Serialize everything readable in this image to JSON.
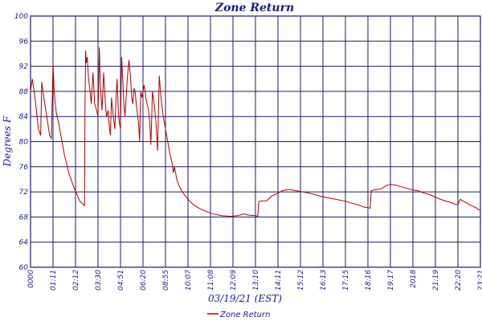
{
  "chart_data": {
    "type": "line",
    "title": "Zone Return",
    "xlabel": "03/19/21 (EST)",
    "ylabel": "Degrees F",
    "ylim": [
      60,
      100
    ],
    "yticks": [
      "60",
      "64",
      "68",
      "72",
      "76",
      "80",
      "84",
      "88",
      "92",
      "96",
      "100"
    ],
    "xticks": [
      "0000",
      "01:11",
      "02:12",
      "03:30",
      "04:51",
      "06:20",
      "08:55",
      "10:07",
      "11:08",
      "12:09",
      "13:10",
      "14:11",
      "15:12",
      "16:13",
      "17:15",
      "18:16",
      "19:17",
      "2018",
      "21:19",
      "22:20",
      "23:21"
    ],
    "grid": true,
    "legend_position": "bottom-center",
    "colors": {
      "series": "#b00000",
      "grid": "#1a1a6e",
      "text": "#1a1a8c"
    },
    "series": [
      {
        "name": "Zone Return",
        "points": [
          [
            0.0,
            88.0
          ],
          [
            0.08,
            90.0
          ],
          [
            0.2,
            87.0
          ],
          [
            0.35,
            82.0
          ],
          [
            0.45,
            81.0
          ],
          [
            0.5,
            89.5
          ],
          [
            0.55,
            88.0
          ],
          [
            0.7,
            84.5
          ],
          [
            0.85,
            81.0
          ],
          [
            0.93,
            80.5
          ],
          [
            1.0,
            92.5
          ],
          [
            1.05,
            88.0
          ],
          [
            1.1,
            86.0
          ],
          [
            1.15,
            84.5
          ],
          [
            1.25,
            83.0
          ],
          [
            1.35,
            81.0
          ],
          [
            1.5,
            78.0
          ],
          [
            1.7,
            75.0
          ],
          [
            1.95,
            72.5
          ],
          [
            2.2,
            70.5
          ],
          [
            2.4,
            69.8
          ],
          [
            2.42,
            86.0
          ],
          [
            2.45,
            94.5
          ],
          [
            2.48,
            92.5
          ],
          [
            2.52,
            93.5
          ],
          [
            2.58,
            90.0
          ],
          [
            2.65,
            88.0
          ],
          [
            2.7,
            86.0
          ],
          [
            2.78,
            91.0
          ],
          [
            2.85,
            86.0
          ],
          [
            2.9,
            85.5
          ],
          [
            3.0,
            84.0
          ],
          [
            3.06,
            95.0
          ],
          [
            3.1,
            89.0
          ],
          [
            3.18,
            85.0
          ],
          [
            3.25,
            91.0
          ],
          [
            3.33,
            86.0
          ],
          [
            3.38,
            84.0
          ],
          [
            3.45,
            85.0
          ],
          [
            3.5,
            82.5
          ],
          [
            3.55,
            81.0
          ],
          [
            3.6,
            87.0
          ],
          [
            3.68,
            84.0
          ],
          [
            3.75,
            82.0
          ],
          [
            3.8,
            87.0
          ],
          [
            3.85,
            90.0
          ],
          [
            3.9,
            85.0
          ],
          [
            3.95,
            83.0
          ],
          [
            4.0,
            82.0
          ],
          [
            4.05,
            93.5
          ],
          [
            4.1,
            90.0
          ],
          [
            4.15,
            86.0
          ],
          [
            4.2,
            84.0
          ],
          [
            4.3,
            90.0
          ],
          [
            4.38,
            93.0
          ],
          [
            4.45,
            90.0
          ],
          [
            4.5,
            87.0
          ],
          [
            4.55,
            86.0
          ],
          [
            4.6,
            88.5
          ],
          [
            4.65,
            88.0
          ],
          [
            4.7,
            86.0
          ],
          [
            4.75,
            84.5
          ],
          [
            4.8,
            83.0
          ],
          [
            4.85,
            80.0
          ],
          [
            4.9,
            88.0
          ],
          [
            4.95,
            87.0
          ],
          [
            5.05,
            89.0
          ],
          [
            5.15,
            86.5
          ],
          [
            5.25,
            85.0
          ],
          [
            5.3,
            83.0
          ],
          [
            5.35,
            79.5
          ],
          [
            5.42,
            88.0
          ],
          [
            5.5,
            86.0
          ],
          [
            5.58,
            83.0
          ],
          [
            5.65,
            78.5
          ],
          [
            5.72,
            90.5
          ],
          [
            5.8,
            87.0
          ],
          [
            5.9,
            84.0
          ],
          [
            6.0,
            82.0
          ],
          [
            6.1,
            80.0
          ],
          [
            6.2,
            78.0
          ],
          [
            6.3,
            76.5
          ],
          [
            6.35,
            75.0
          ],
          [
            6.4,
            76.0
          ],
          [
            6.5,
            74.0
          ],
          [
            6.6,
            73.0
          ],
          [
            6.75,
            72.0
          ],
          [
            7.0,
            70.8
          ],
          [
            7.3,
            69.8
          ],
          [
            7.6,
            69.2
          ],
          [
            8.0,
            68.6
          ],
          [
            8.5,
            68.2
          ],
          [
            8.9,
            68.1
          ],
          [
            9.2,
            68.2
          ],
          [
            9.5,
            68.5
          ],
          [
            9.7,
            68.3
          ],
          [
            10.0,
            68.2
          ],
          [
            10.1,
            68.1
          ],
          [
            10.15,
            70.5
          ],
          [
            10.5,
            70.6
          ],
          [
            10.7,
            71.3
          ],
          [
            11.0,
            71.8
          ],
          [
            11.2,
            72.2
          ],
          [
            11.5,
            72.4
          ],
          [
            11.8,
            72.2
          ],
          [
            12.1,
            72.0
          ],
          [
            12.4,
            71.8
          ],
          [
            12.7,
            71.5
          ],
          [
            13.0,
            71.2
          ],
          [
            13.3,
            71.0
          ],
          [
            13.6,
            70.8
          ],
          [
            14.0,
            70.5
          ],
          [
            14.3,
            70.2
          ],
          [
            14.6,
            69.9
          ],
          [
            14.8,
            69.6
          ],
          [
            15.0,
            69.5
          ],
          [
            15.1,
            69.4
          ],
          [
            15.15,
            72.2
          ],
          [
            15.4,
            72.4
          ],
          [
            15.6,
            72.5
          ],
          [
            15.8,
            73.0
          ],
          [
            16.0,
            73.2
          ],
          [
            16.2,
            73.1
          ],
          [
            16.5,
            72.8
          ],
          [
            16.8,
            72.5
          ],
          [
            17.0,
            72.3
          ],
          [
            17.2,
            72.2
          ],
          [
            17.5,
            71.8
          ],
          [
            17.8,
            71.5
          ],
          [
            18.1,
            71.0
          ],
          [
            18.4,
            70.6
          ],
          [
            18.7,
            70.3
          ],
          [
            18.9,
            70.0
          ],
          [
            19.0,
            70.0
          ],
          [
            19.1,
            70.8
          ],
          [
            19.2,
            70.6
          ],
          [
            19.4,
            70.2
          ],
          [
            19.6,
            69.8
          ],
          [
            19.8,
            69.5
          ],
          [
            19.9,
            69.2
          ],
          [
            20.0,
            69.1
          ]
        ]
      }
    ]
  }
}
